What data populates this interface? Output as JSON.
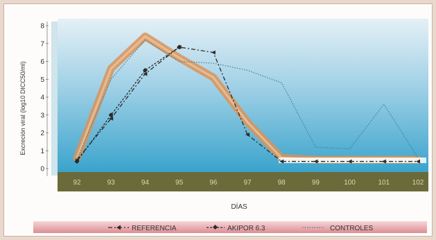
{
  "chart_data": {
    "type": "line",
    "xlabel": "DÍAS",
    "ylabel": "Excreción viral (log10 DICC50/ml)",
    "categories": [
      "92",
      "93",
      "94",
      "95",
      "96",
      "97",
      "98",
      "99",
      "100",
      "101",
      "102"
    ],
    "ylim": [
      0,
      8
    ],
    "yticks": [
      "0",
      "1",
      "2",
      "3",
      "4",
      "5",
      "6",
      "7",
      "8"
    ],
    "grid": false,
    "legend_position": "bottom",
    "series": [
      {
        "name": "REFERENCIA",
        "style": "dash-dot-arrow",
        "values": [
          0.5,
          2.8,
          5.3,
          6.8,
          6.5,
          1.9,
          0.4,
          0.4,
          0.4,
          0.4,
          0.4
        ]
      },
      {
        "name": "AKIPOR 6.3",
        "style": "dashed-diamond",
        "values": [
          0.4,
          3.0,
          5.5,
          6.8,
          null,
          null,
          null,
          null,
          null,
          null,
          null
        ]
      },
      {
        "name": "CONTROLES",
        "style": "dotted",
        "values": [
          0.5,
          5.0,
          7.2,
          6.0,
          5.9,
          5.5,
          4.8,
          1.2,
          1.1,
          3.6,
          0.6
        ]
      }
    ],
    "band": {
      "values": [
        0.6,
        5.6,
        7.4,
        6.2,
        5.1,
        2.6,
        0.6,
        0.5,
        0.5,
        0.5,
        0.5
      ]
    }
  },
  "colors": {
    "plot_top": "#e5f0f6",
    "plot_bottom": "#3aa4cc",
    "floor": "#6b6a3a",
    "band": "#d9935a",
    "line": "#2a2a2a",
    "controls": "#3f7d8f",
    "legend_bar": "#e4a4a9"
  }
}
